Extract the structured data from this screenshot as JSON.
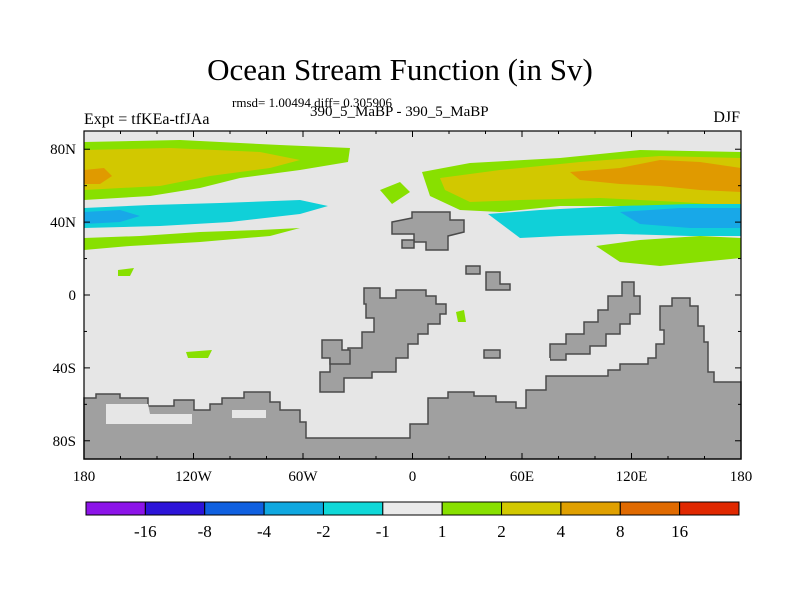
{
  "title": "Ocean Stream Function (in Sv)",
  "stats": "rmsd= 1.00494 diff= 0.305906",
  "left_label": "Expt = tfKEa-tfJAa",
  "center_label": "390_5_MaBP - 390_5_MaBP",
  "right_label": "DJF",
  "colors": {
    "background_field": "#e6e6e6",
    "land": "#a0a0a0",
    "land_outline": "#4a4a4a",
    "green": "#88e000",
    "yellow": "#d2c800",
    "orange": "#e09a00",
    "cyan": "#10d0d8",
    "lightblue": "#18a8e8"
  },
  "map": {
    "lon_ticks": [
      "180",
      "120W",
      "60W",
      "0",
      "60E",
      "120E",
      "180"
    ],
    "lat_ticks": [
      "80N",
      "40N",
      "0",
      "40S",
      "80S"
    ]
  },
  "colorbar": {
    "colors": [
      "#8c14e8",
      "#2d14d8",
      "#1060e0",
      "#10a8e0",
      "#10d8d8",
      "#eaeaea",
      "#88e000",
      "#d2c800",
      "#e0a000",
      "#e06a00",
      "#e02800"
    ],
    "labels": [
      "-16",
      "-8",
      "-4",
      "-2",
      "-1",
      "1",
      "2",
      "4",
      "8",
      "16"
    ]
  }
}
